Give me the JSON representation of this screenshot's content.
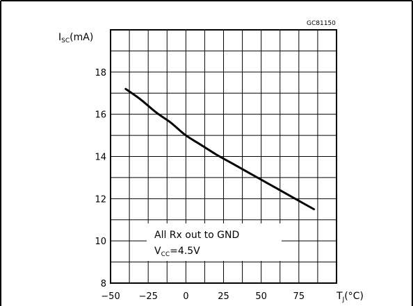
{
  "figure_code": "GC81150",
  "chart_data": {
    "type": "line",
    "ylabel": {
      "main": "I",
      "sub": "SC",
      "unit": "(mA)"
    },
    "xlabel": {
      "main": "T",
      "sub": "J",
      "unit": "(°C)"
    },
    "xlim": [
      -50,
      100
    ],
    "ylim": [
      8,
      20
    ],
    "x_ticks": [
      -50,
      -25,
      0,
      25,
      50,
      75
    ],
    "x_tick_labels": [
      "−50",
      "−25",
      "0",
      "25",
      "50",
      "75"
    ],
    "y_ticks": [
      8,
      10,
      12,
      14,
      16,
      18
    ],
    "y_tick_labels": [
      "8",
      "10",
      "12",
      "14",
      "16",
      "18"
    ],
    "grid": true,
    "grid_minor_step_x": 12.5,
    "grid_minor_step_y": 1,
    "series": [
      {
        "color": "#000000",
        "x": [
          -40,
          -30,
          -20,
          -10,
          0,
          10,
          20,
          30,
          40,
          50,
          60,
          70,
          80,
          85
        ],
        "y": [
          17.2,
          16.7,
          16.1,
          15.6,
          15.0,
          14.55,
          14.1,
          13.7,
          13.3,
          12.9,
          12.5,
          12.1,
          11.7,
          11.5
        ]
      }
    ],
    "annotation": {
      "line1": "All Rx out to GND",
      "line2_main": "V",
      "line2_sub": "CC",
      "line2_rest": "=4.5V"
    }
  }
}
